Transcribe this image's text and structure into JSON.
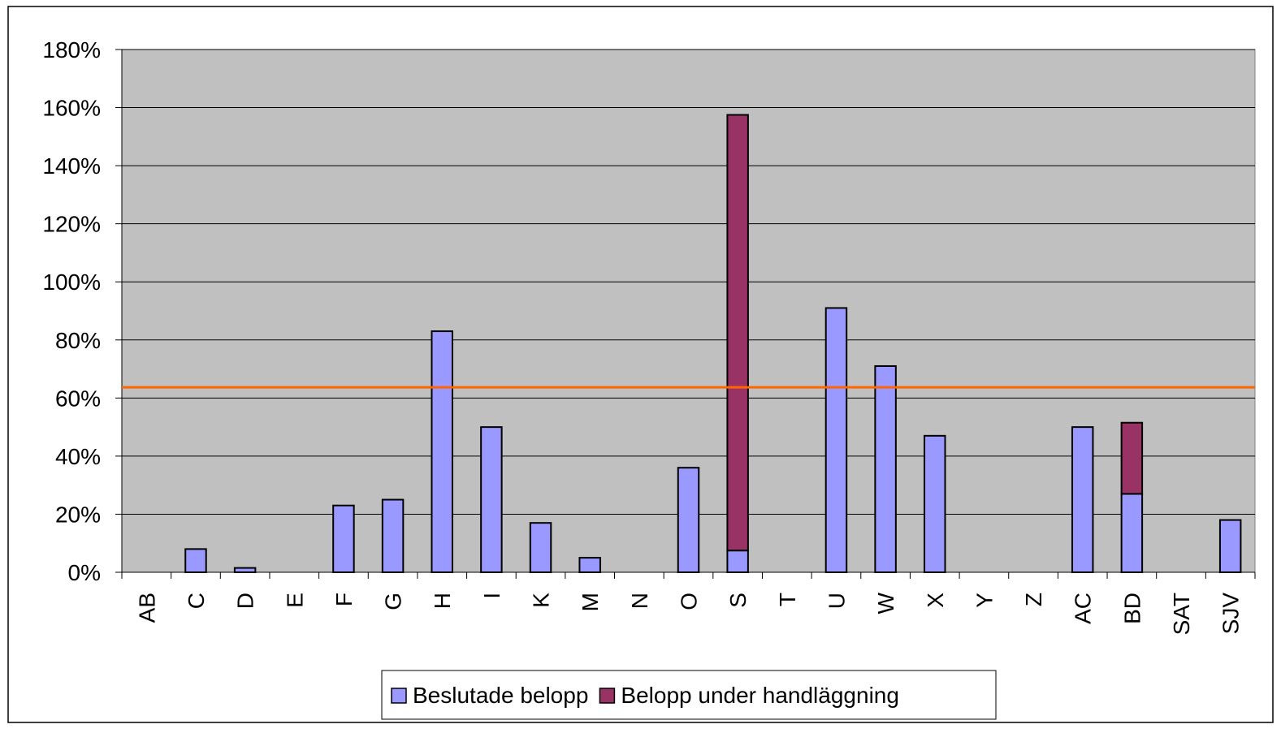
{
  "chart_data": {
    "type": "stacked_bar",
    "categories": [
      "AB",
      "C",
      "D",
      "E",
      "F",
      "G",
      "H",
      "I",
      "K",
      "M",
      "N",
      "O",
      "S",
      "T",
      "U",
      "W",
      "X",
      "Y",
      "Z",
      "AC",
      "BD",
      "SAT",
      "SJV"
    ],
    "series": [
      {
        "name": "Beslutade belopp",
        "color": "#9999ff",
        "values": [
          0,
          8,
          1.5,
          0,
          23,
          25,
          83,
          50,
          17,
          5,
          0,
          36,
          7.5,
          0,
          91,
          71,
          47,
          0,
          0,
          50,
          27,
          0,
          18
        ]
      },
      {
        "name": "Belopp under handläggning",
        "color": "#993366",
        "values": [
          0,
          0,
          0,
          0,
          0,
          0,
          0,
          0,
          0,
          0,
          0,
          0,
          150,
          0,
          0,
          0,
          0,
          0,
          0,
          0,
          24.5,
          0,
          0
        ]
      }
    ],
    "ylim": [
      0,
      180
    ],
    "yticks": [
      {
        "value": 0,
        "label": "0%"
      },
      {
        "value": 20,
        "label": "20%"
      },
      {
        "value": 40,
        "label": "40%"
      },
      {
        "value": 60,
        "label": "60%"
      },
      {
        "value": 80,
        "label": "80%"
      },
      {
        "value": 100,
        "label": "100%"
      },
      {
        "value": 120,
        "label": "120%"
      },
      {
        "value": 140,
        "label": "140%"
      },
      {
        "value": 160,
        "label": "160%"
      },
      {
        "value": 180,
        "label": "180%"
      }
    ],
    "reference_line": {
      "value": 63.7,
      "color": "#ff6600"
    },
    "grid": true,
    "plot_background": "#c0c0c0",
    "legend": "bottom"
  }
}
